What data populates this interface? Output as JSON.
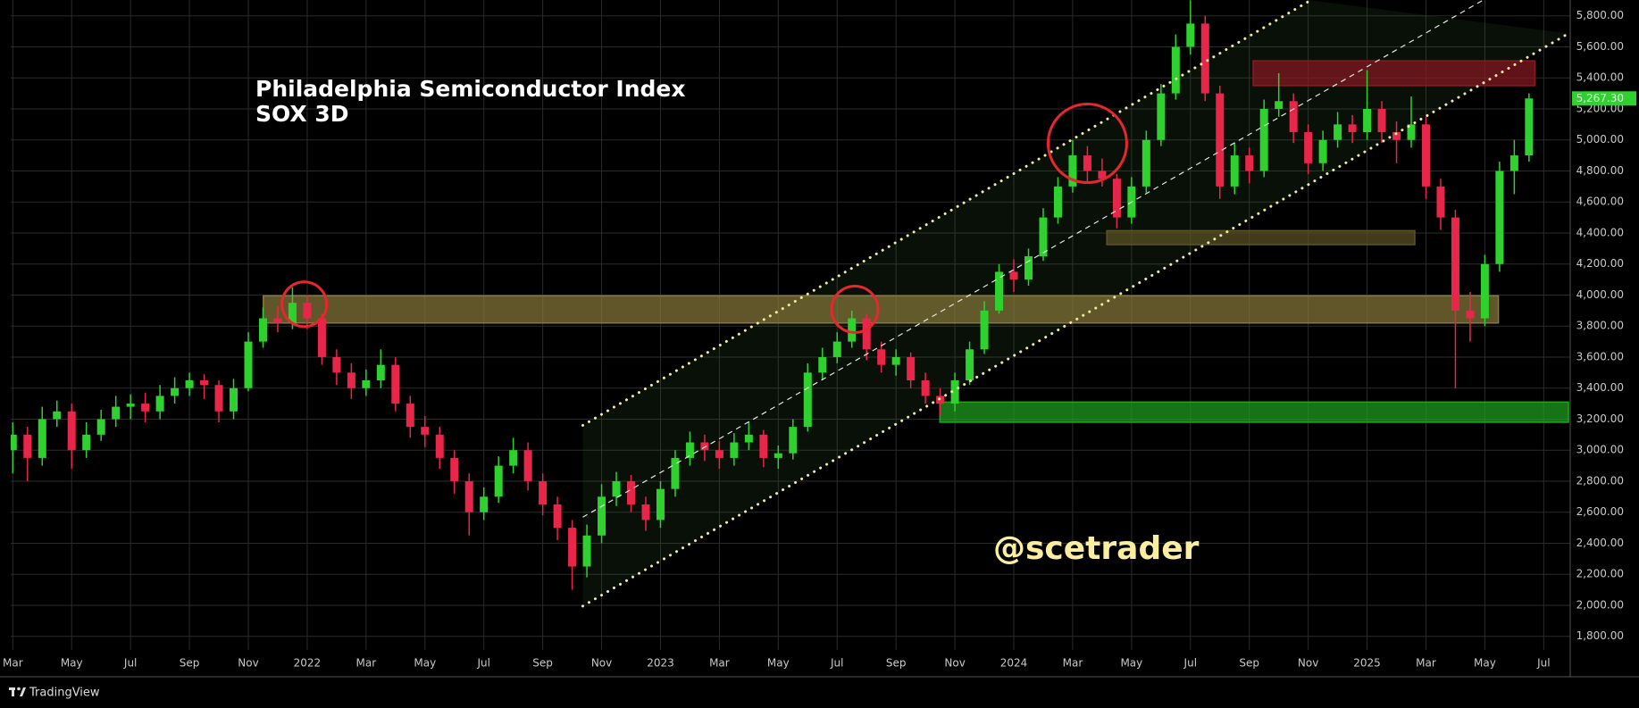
{
  "chart_data": {
    "type": "candlestick",
    "title": "Philadelphia Semiconductor Index",
    "subtitle": "SOX 3D",
    "watermark": "@scetrader",
    "up_color": "#2fd12f",
    "down_color": "#e8264a",
    "x": [
      2,
      2.5,
      3,
      3.5,
      4,
      4.5,
      5,
      5.5,
      6,
      6.5,
      7,
      7.5,
      8,
      8.5,
      9,
      9.5,
      10,
      10.5,
      11,
      11.5,
      12,
      12.5,
      13,
      13.5,
      14,
      14.5,
      15,
      15.5,
      16,
      16.5,
      17,
      17.5,
      18,
      18.5,
      19,
      19.5,
      20,
      20.5,
      21,
      21.5,
      22,
      22.5,
      23,
      23.5,
      24,
      24.5,
      25,
      25.5,
      26,
      26.5,
      27,
      27.5,
      28,
      28.5,
      29,
      29.5,
      30,
      30.5,
      31,
      31.5,
      32,
      32.5,
      33,
      33.5,
      34,
      34.5,
      35,
      35.5,
      36,
      36.5,
      37,
      37.5,
      38,
      38.5,
      39,
      39.5,
      40,
      40.5,
      41,
      41.5,
      42,
      42.5,
      43,
      43.5,
      44,
      44.5,
      45,
      45.5,
      46,
      46.5,
      47,
      47.5,
      48,
      48.5,
      49,
      49.5,
      50,
      50.5,
      51,
      51.5,
      52,
      52.5,
      53,
      53.5
    ],
    "open": [
      3000,
      3100,
      2950,
      3200,
      3250,
      3000,
      3100,
      3200,
      3280,
      3300,
      3250,
      3350,
      3400,
      3450,
      3420,
      3250,
      3400,
      3700,
      3850,
      3820,
      3950,
      3850,
      3600,
      3500,
      3400,
      3450,
      3550,
      3300,
      3150,
      3100,
      2950,
      2800,
      2600,
      2700,
      2900,
      3000,
      2800,
      2650,
      2500,
      2250,
      2450,
      2700,
      2800,
      2650,
      2550,
      2750,
      2950,
      3050,
      3000,
      2950,
      3050,
      3100,
      2950,
      2980,
      3150,
      3500,
      3600,
      3700,
      3850,
      3650,
      3550,
      3600,
      3450,
      3350,
      3300,
      3450,
      3650,
      3900,
      4150,
      4100,
      4250,
      4500,
      4700,
      4900,
      4800,
      4750,
      4500,
      4700,
      5000,
      5300,
      5600,
      5750,
      5300,
      4700,
      4900,
      4800,
      5200,
      5250,
      5050,
      4850,
      5000,
      5100,
      5050,
      5200,
      5050,
      5000,
      5100,
      4700,
      4500,
      3900,
      3850,
      4200,
      4800,
      4900
    ],
    "high": [
      3180,
      3150,
      3280,
      3320,
      3300,
      3180,
      3260,
      3350,
      3360,
      3370,
      3420,
      3470,
      3500,
      3490,
      3450,
      3460,
      3760,
      3920,
      3930,
      4050,
      4000,
      3880,
      3650,
      3560,
      3520,
      3650,
      3600,
      3350,
      3220,
      3150,
      3000,
      2850,
      2760,
      2960,
      3080,
      3050,
      2850,
      2700,
      2550,
      2520,
      2780,
      2860,
      2840,
      2700,
      2800,
      3000,
      3120,
      3100,
      3060,
      3110,
      3180,
      3130,
      3030,
      3200,
      3560,
      3660,
      3760,
      3900,
      3880,
      3700,
      3650,
      3630,
      3500,
      3400,
      3500,
      3700,
      3960,
      4200,
      4230,
      4300,
      4560,
      4760,
      5000,
      4960,
      4880,
      4780,
      4760,
      5060,
      5360,
      5680,
      5900,
      5800,
      5350,
      4980,
      4950,
      5260,
      5430,
      5300,
      5100,
      5060,
      5180,
      5160,
      5450,
      5250,
      5120,
      5280,
      5150,
      4750,
      4550,
      4020,
      4260,
      4860,
      5000,
      5300
    ],
    "low": [
      2850,
      2800,
      2900,
      3150,
      2880,
      2950,
      3060,
      3150,
      3200,
      3180,
      3200,
      3300,
      3350,
      3330,
      3180,
      3200,
      3380,
      3660,
      3760,
      3780,
      3780,
      3550,
      3420,
      3330,
      3350,
      3400,
      3250,
      3080,
      3020,
      2880,
      2720,
      2450,
      2550,
      2660,
      2850,
      2740,
      2580,
      2420,
      2100,
      2180,
      2400,
      2640,
      2600,
      2480,
      2500,
      2700,
      2900,
      2930,
      2880,
      2900,
      3000,
      2890,
      2880,
      2940,
      3120,
      3450,
      3560,
      3660,
      3580,
      3500,
      3480,
      3400,
      3300,
      3220,
      3250,
      3420,
      3620,
      3880,
      4020,
      4060,
      4220,
      4460,
      4660,
      4720,
      4700,
      4430,
      4460,
      4660,
      4960,
      5260,
      5550,
      5250,
      4620,
      4650,
      4720,
      4760,
      5150,
      4980,
      4780,
      4800,
      4950,
      4980,
      5000,
      4980,
      4850,
      4950,
      4620,
      4420,
      3400,
      3700,
      3800,
      4150,
      4650,
      4860
    ],
    "close": [
      3100,
      2950,
      3200,
      3250,
      3000,
      3100,
      3200,
      3280,
      3300,
      3250,
      3350,
      3400,
      3450,
      3420,
      3250,
      3400,
      3700,
      3850,
      3820,
      3950,
      3850,
      3600,
      3500,
      3400,
      3450,
      3550,
      3300,
      3150,
      3100,
      2950,
      2800,
      2600,
      2700,
      2900,
      3000,
      2800,
      2650,
      2500,
      2250,
      2450,
      2700,
      2800,
      2650,
      2550,
      2750,
      2950,
      3050,
      3000,
      2950,
      3050,
      3100,
      2950,
      2980,
      3150,
      3500,
      3600,
      3700,
      3850,
      3650,
      3550,
      3600,
      3450,
      3350,
      3300,
      3450,
      3650,
      3900,
      4150,
      4100,
      4250,
      4500,
      4700,
      4900,
      4800,
      4750,
      4500,
      4700,
      5000,
      5300,
      5600,
      5750,
      5300,
      4700,
      4900,
      4800,
      5200,
      5250,
      5050,
      4850,
      5000,
      5100,
      5050,
      5200,
      5050,
      5000,
      5100,
      4700,
      4500,
      3900,
      3850,
      4200,
      4800,
      4900,
      5267.3
    ],
    "xlim": [
      1.93,
      54.9
    ],
    "xticks": [
      {
        "value": 2,
        "label": "Mar"
      },
      {
        "value": 4,
        "label": "May"
      },
      {
        "value": 6,
        "label": "Jul"
      },
      {
        "value": 8,
        "label": "Sep"
      },
      {
        "value": 10,
        "label": "Nov"
      },
      {
        "value": 12,
        "label": "2022"
      },
      {
        "value": 14,
        "label": "Mar"
      },
      {
        "value": 16,
        "label": "May"
      },
      {
        "value": 18,
        "label": "Jul"
      },
      {
        "value": 20,
        "label": "Sep"
      },
      {
        "value": 22,
        "label": "Nov"
      },
      {
        "value": 24,
        "label": "2023"
      },
      {
        "value": 26,
        "label": "Mar"
      },
      {
        "value": 28,
        "label": "May"
      },
      {
        "value": 30,
        "label": "Jul"
      },
      {
        "value": 32,
        "label": "Sep"
      },
      {
        "value": 34,
        "label": "Nov"
      },
      {
        "value": 36,
        "label": "2024"
      },
      {
        "value": 38,
        "label": "Mar"
      },
      {
        "value": 40,
        "label": "May"
      },
      {
        "value": 42,
        "label": "Jul"
      },
      {
        "value": 44,
        "label": "Sep"
      },
      {
        "value": 46,
        "label": "Nov"
      },
      {
        "value": 48,
        "label": "2025"
      },
      {
        "value": 50,
        "label": "Mar"
      },
      {
        "value": 52,
        "label": "May"
      },
      {
        "value": 54,
        "label": "Jul"
      }
    ],
    "ylim": [
      1712,
      5902
    ],
    "yticks": [
      {
        "value": 1800,
        "label": "1,800.00"
      },
      {
        "value": 2000,
        "label": "2,000.00"
      },
      {
        "value": 2200,
        "label": "2,200.00"
      },
      {
        "value": 2400,
        "label": "2,400.00"
      },
      {
        "value": 2600,
        "label": "2,600.00"
      },
      {
        "value": 2800,
        "label": "2,800.00"
      },
      {
        "value": 3000,
        "label": "3,000.00"
      },
      {
        "value": 3200,
        "label": "3,200.00"
      },
      {
        "value": 3400,
        "label": "3,400.00"
      },
      {
        "value": 3600,
        "label": "3,600.00"
      },
      {
        "value": 3800,
        "label": "3,800.00"
      },
      {
        "value": 4000,
        "label": "4,000.00"
      },
      {
        "value": 4200,
        "label": "4,200.00"
      },
      {
        "value": 4400,
        "label": "4,400.00"
      },
      {
        "value": 4600,
        "label": "4,600.00"
      },
      {
        "value": 4800,
        "label": "4,800.00"
      },
      {
        "value": 5000,
        "label": "5,000.00"
      },
      {
        "value": 5200,
        "label": "5,200.00"
      },
      {
        "value": 5400,
        "label": "5,400.00"
      },
      {
        "value": 5600,
        "label": "5,600.00"
      },
      {
        "value": 5800,
        "label": "5,800.00"
      }
    ],
    "grid": true,
    "last_price": {
      "value": 5267.3,
      "label": "5,267.30"
    },
    "zones": [
      {
        "x": [
          10.51,
          52.46
        ],
        "y": [
          3820,
          3995
        ],
        "color": "#8a7a3a"
      },
      {
        "x": [
          44.13,
          53.7
        ],
        "y": [
          5350,
          5510
        ],
        "color": "#8a1a22"
      },
      {
        "x": [
          39.16,
          49.62
        ],
        "y": [
          4325,
          4415
        ],
        "color": "#5e5426"
      },
      {
        "x": [
          33.49,
          54.84
        ],
        "y": [
          3180,
          3310
        ],
        "color": "#1fa51f"
      }
    ],
    "lines": [
      {
        "x": [
          21.36,
          46.08
        ],
        "y": [
          3160,
          5900
        ],
        "style": "dotted",
        "color": "#f2eca0"
      },
      {
        "x": [
          21.36,
          51.93
        ],
        "y": [
          2568,
          5900
        ],
        "style": "dashed",
        "color": "#e6e6e6"
      },
      {
        "x": [
          21.36,
          54.84
        ],
        "y": [
          1995,
          5686
        ],
        "style": "dotted",
        "color": "#f2eca0"
      }
    ],
    "circles": [
      {
        "x": 11.9,
        "y": 3941,
        "color": "#e8262e"
      },
      {
        "x": 30.6,
        "y": 3908,
        "color": "#e8262e"
      },
      {
        "x": 38.5,
        "y": 4978,
        "color": "#e8262e"
      }
    ]
  },
  "footer": "TradingView"
}
